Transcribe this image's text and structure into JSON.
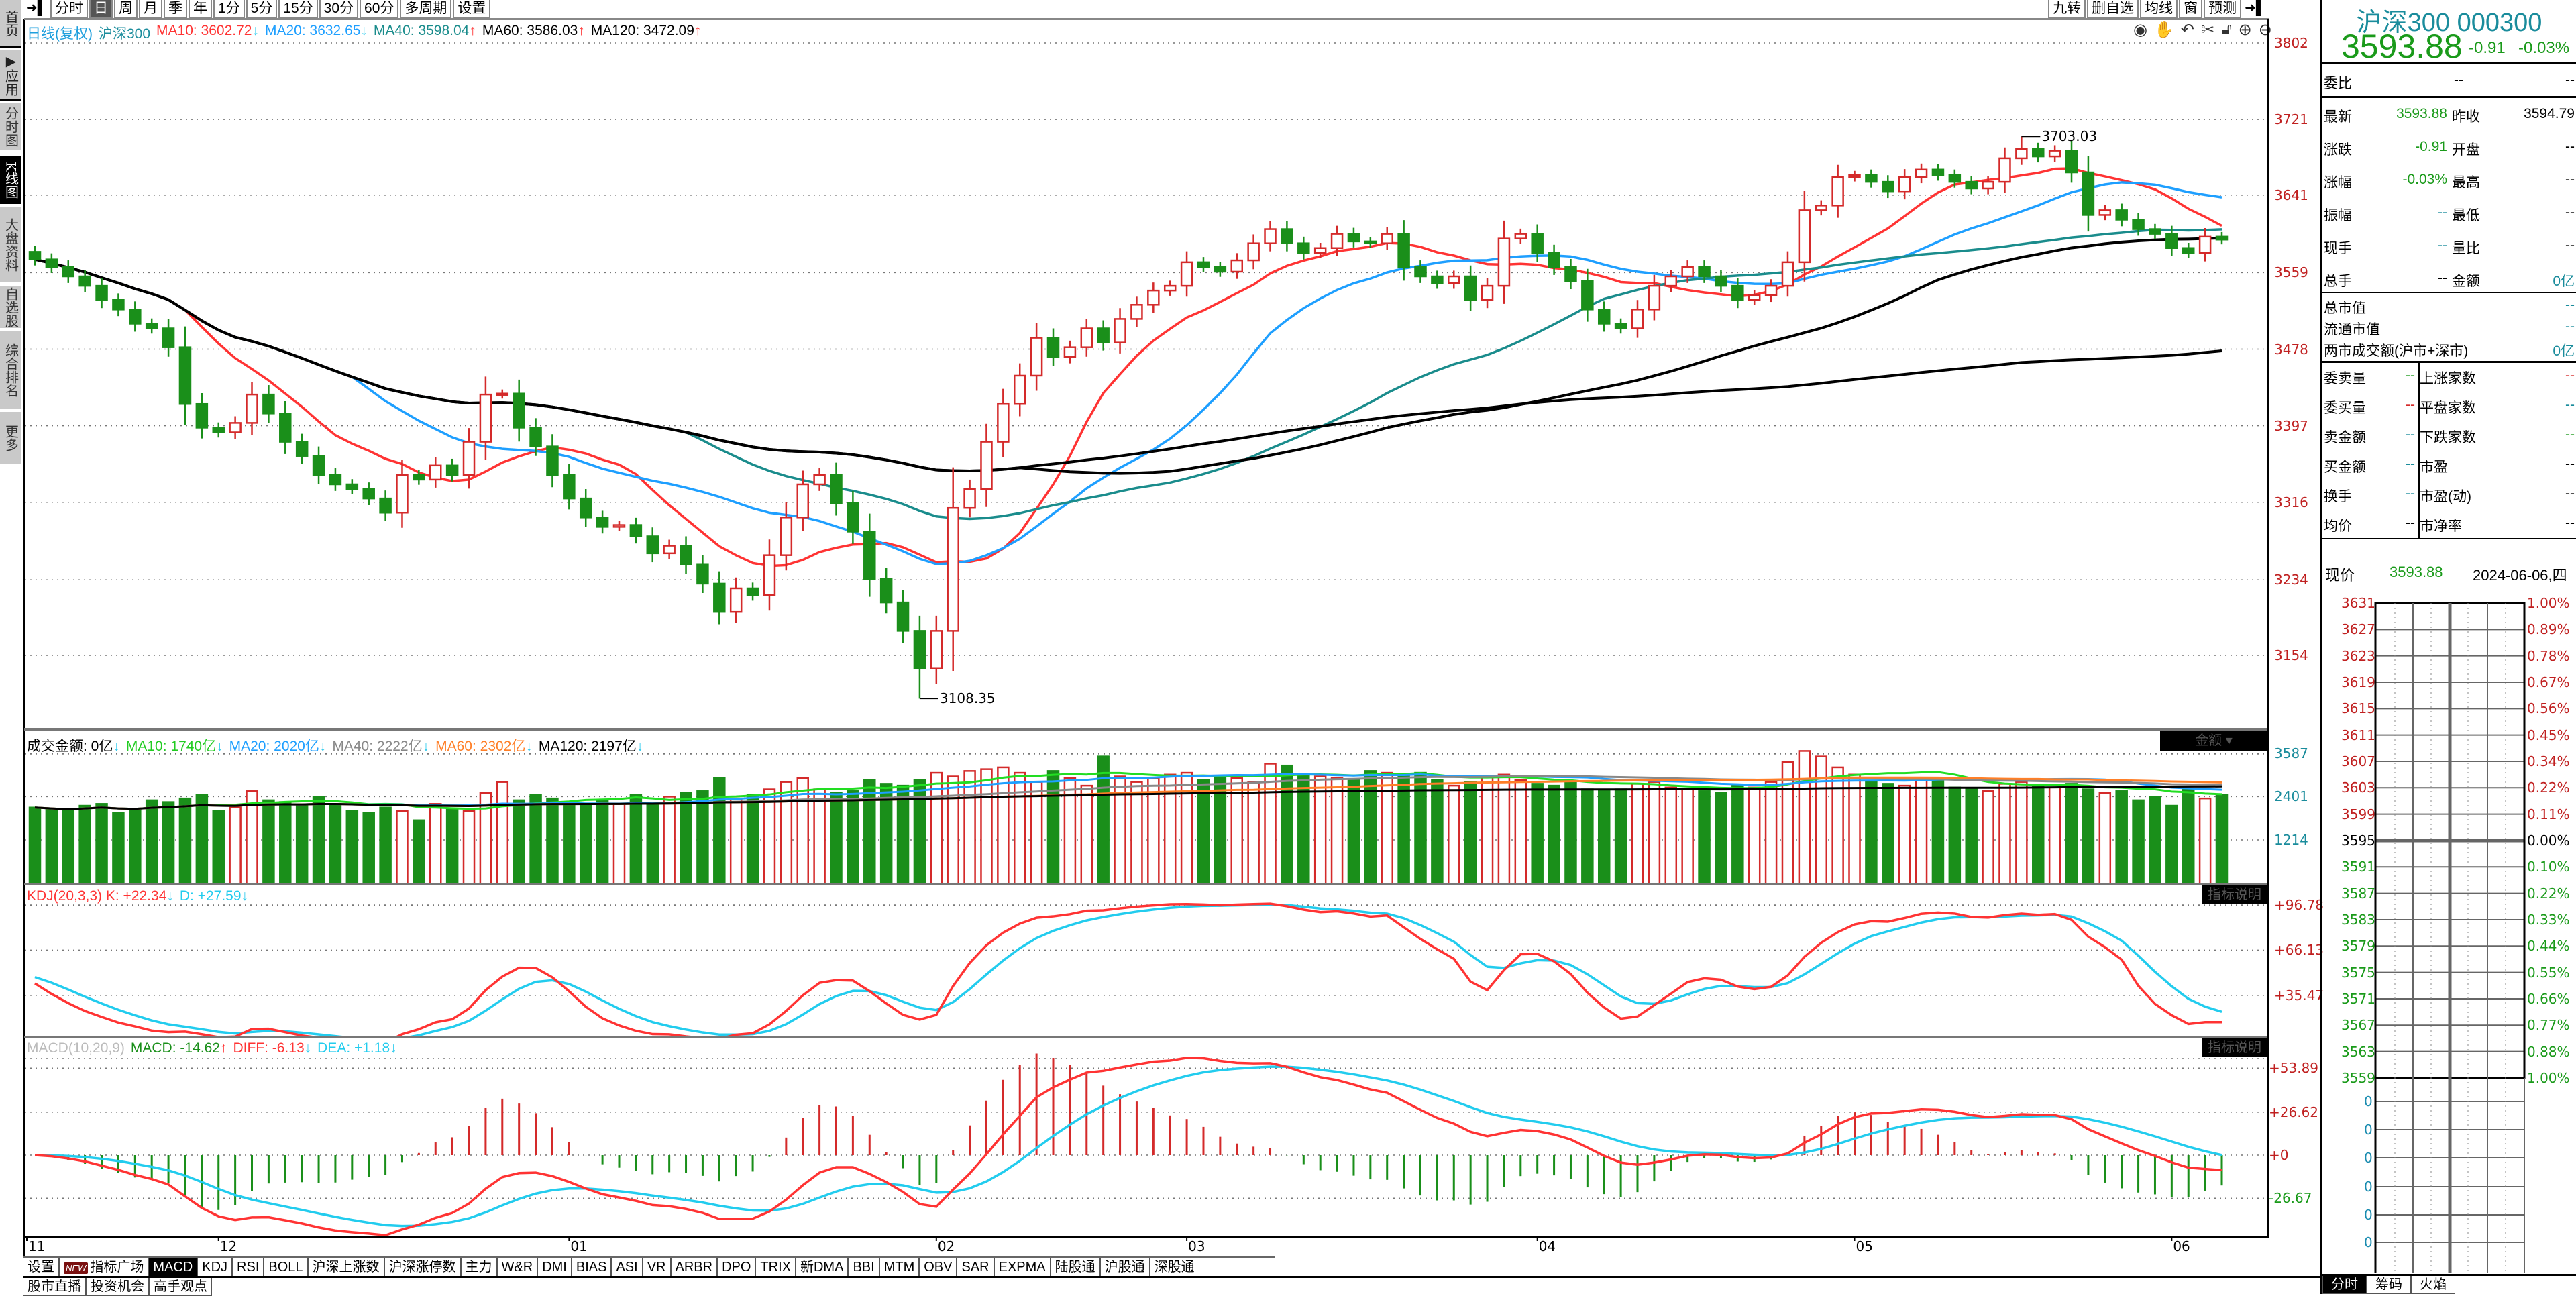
{
  "sidebar": {
    "items": [
      {
        "label": "首页",
        "style": "dark"
      },
      {
        "label": "▶应用",
        "style": "dark"
      },
      {
        "label": "分时图",
        "style": ""
      },
      {
        "label": "K线图",
        "style": "active"
      },
      {
        "label": "大盘资料",
        "style": ""
      },
      {
        "label": "自选股",
        "style": ""
      },
      {
        "label": "综合排名",
        "style": ""
      },
      {
        "label": "更多",
        "style": ""
      }
    ]
  },
  "toolbar": {
    "periods": [
      "分时",
      "日",
      "周",
      "月",
      "季",
      "年",
      "1分",
      "5分",
      "15分",
      "30分",
      "60分",
      "多周期",
      "设置"
    ],
    "active_period": "日",
    "right_buttons": [
      "九转",
      "删自选",
      "均线",
      "窗",
      "预测"
    ]
  },
  "price_legend": {
    "title": "日线(复权)",
    "name": "沪深300",
    "items": [
      {
        "text": "MA10: 3602.72",
        "arrow": "↓",
        "color": "#ff3333",
        "arrow_color": "#33ccee"
      },
      {
        "text": "MA20: 3632.65",
        "arrow": "↓",
        "color": "#1e9fff",
        "arrow_color": "#33ccee"
      },
      {
        "text": "MA40: 3598.04",
        "arrow": "↑",
        "color": "#1a8c8c",
        "arrow_color": "#ff3333"
      },
      {
        "text": "MA60: 3586.03",
        "arrow": "↑",
        "color": "#000000",
        "arrow_color": "#ff3333"
      },
      {
        "text": "MA120: 3472.09",
        "arrow": "↑",
        "color": "#000000",
        "arrow_color": "#ff3333"
      }
    ]
  },
  "chart_icons": [
    "eye-icon",
    "hand-icon",
    "undo-icon",
    "scissors-icon",
    "lock-icon",
    "zoom-in-icon",
    "zoom-out-icon"
  ],
  "volume_legend": {
    "items": [
      {
        "text": "成交金额: 0亿",
        "arrow": "↓",
        "color": "#000000"
      },
      {
        "text": "MA10: 1740亿",
        "arrow": "↓",
        "color": "#22cc22"
      },
      {
        "text": "MA20: 2020亿",
        "arrow": "↓",
        "color": "#1e9fff"
      },
      {
        "text": "MA40: 2222亿",
        "arrow": "↓",
        "color": "#888888"
      },
      {
        "text": "MA60: 2302亿",
        "arrow": "↓",
        "color": "#ff7f27"
      },
      {
        "text": "MA120: 2197亿",
        "arrow": "↓",
        "color": "#000000"
      }
    ],
    "dropdown": "金额 ▾"
  },
  "kdj_legend": {
    "items": [
      {
        "text": "KDJ(20,3,3) K: +22.34",
        "arrow": "↓",
        "color": "#ff3333"
      },
      {
        "text": "D: +27.59",
        "arrow": "↓",
        "color": "#22ccee"
      }
    ],
    "help": "指标说明"
  },
  "macd_legend": {
    "items": [
      {
        "text": "MACD(10,20,9)",
        "arrow": "",
        "color": "#bbbbbb"
      },
      {
        "text": "MACD: -14.62",
        "arrow": "↑",
        "color": "#1a8f1a"
      },
      {
        "text": "DIFF: -6.13",
        "arrow": "↓",
        "color": "#ff3333"
      },
      {
        "text": "DEA: +1.18",
        "arrow": "↓",
        "color": "#22ccee"
      }
    ],
    "help": "指标说明"
  },
  "colors": {
    "up": "#d42a2a",
    "down": "#1a8f1a",
    "ma10": "#ff3333",
    "ma20": "#1e9fff",
    "ma40": "#1a8c8c",
    "ma60": "#000000",
    "ma120": "#000000",
    "vma10": "#22dd22",
    "vma20": "#1e9fff",
    "vma40": "#888888",
    "vma60": "#ff7f27",
    "vma120": "#000000",
    "k": "#ff3333",
    "d": "#22ccee",
    "teal": "#1a8c9c"
  },
  "chart_data": {
    "type": "candlestick",
    "title": "沪深300 日线(复权)",
    "x_ticks": [
      {
        "label": "11",
        "index": 0
      },
      {
        "label": "12",
        "index": 11
      },
      {
        "label": "01",
        "index": 32
      },
      {
        "label": "02",
        "index": 54
      },
      {
        "label": "03",
        "index": 69
      },
      {
        "label": "04",
        "index": 90
      },
      {
        "label": "05",
        "index": 109
      },
      {
        "label": "06",
        "index": 128
      }
    ],
    "price_ticks": [
      3802,
      3721,
      3641,
      3559,
      3478,
      3397,
      3316,
      3234,
      3154
    ],
    "price_ylim": [
      3100,
      3802
    ],
    "close": [
      3573,
      3565,
      3555,
      3545,
      3530,
      3520,
      3505,
      3500,
      3480,
      3420,
      3395,
      3390,
      3400,
      3430,
      3410,
      3380,
      3365,
      3345,
      3335,
      3330,
      3320,
      3305,
      3345,
      3340,
      3355,
      3345,
      3380,
      3430,
      3431,
      3395,
      3375,
      3345,
      3320,
      3300,
      3290,
      3292,
      3280,
      3262,
      3270,
      3250,
      3230,
      3200,
      3225,
      3218,
      3260,
      3300,
      3335,
      3345,
      3315,
      3285,
      3235,
      3210,
      3180,
      3140,
      3180,
      3310,
      3330,
      3380,
      3420,
      3450,
      3490,
      3470,
      3480,
      3500,
      3485,
      3510,
      3525,
      3540,
      3545,
      3570,
      3565,
      3560,
      3572,
      3590,
      3605,
      3590,
      3580,
      3585,
      3600,
      3592,
      3590,
      3600,
      3565,
      3555,
      3548,
      3555,
      3530,
      3545,
      3595,
      3600,
      3580,
      3565,
      3550,
      3520,
      3505,
      3500,
      3520,
      3545,
      3555,
      3565,
      3555,
      3545,
      3530,
      3535,
      3545,
      3570,
      3625,
      3630,
      3660,
      3662,
      3655,
      3645,
      3660,
      3668,
      3662,
      3655,
      3648,
      3655,
      3680,
      3690,
      3682,
      3688,
      3665,
      3620,
      3625,
      3615,
      3605,
      3600,
      3585,
      3580,
      3597,
      3593.88
    ],
    "annotations": [
      {
        "label": "3703.03",
        "index": 119,
        "value": 3703.03,
        "type": "high"
      },
      {
        "label": "3108.35",
        "index": 53,
        "value": 3108.35,
        "type": "low"
      }
    ],
    "ma_periods": [
      10,
      20,
      40,
      60,
      120
    ],
    "volume": [
      2100,
      2050,
      2000,
      2150,
      2200,
      1950,
      2000,
      2300,
      2250,
      2350,
      2450,
      2000,
      2100,
      2550,
      2300,
      2250,
      2150,
      2400,
      2200,
      2000,
      1950,
      2100,
      2000,
      1750,
      2200,
      2050,
      2000,
      2500,
      2800,
      2300,
      2450,
      2350,
      2250,
      2200,
      2300,
      2200,
      2450,
      2200,
      2400,
      2500,
      2550,
      2900,
      2350,
      2450,
      2600,
      2800,
      2900,
      2600,
      2500,
      2550,
      2850,
      2750,
      2700,
      2850,
      3050,
      2950,
      3100,
      3150,
      3200,
      3050,
      2800,
      3100,
      2900,
      2700,
      3500,
      2950,
      2800,
      2900,
      3000,
      3050,
      2850,
      2950,
      2900,
      2800,
      3300,
      3250,
      3000,
      2950,
      2900,
      2850,
      3100,
      3050,
      2950,
      3050,
      2850,
      2700,
      2800,
      2950,
      3000,
      2850,
      2750,
      2700,
      2800,
      2600,
      2550,
      2600,
      2750,
      2800,
      2650,
      2600,
      2550,
      2500,
      2700,
      2650,
      2800,
      3350,
      3650,
      3500,
      3200,
      3000,
      2800,
      2750,
      2700,
      2850,
      2900,
      2650,
      2600,
      2550,
      2750,
      2800,
      2700,
      2650,
      2750,
      2600,
      2500,
      2550,
      2300,
      2400,
      2150,
      2600,
      2350,
      2450
    ],
    "volume_unit": "亿",
    "volume_ticks": [
      3587,
      2401,
      1214
    ],
    "kdj_ticks": [
      {
        "label": "+96.78",
        "value": 96.78
      },
      {
        "label": "+66.13",
        "value": 66.13
      },
      {
        "label": "+35.47",
        "value": 35.47
      }
    ],
    "macd_ticks": [
      {
        "label": "+53.89",
        "value": 53.89,
        "sign": "up"
      },
      {
        "label": "+26.62",
        "value": 26.62,
        "sign": "up"
      },
      {
        "label": "+0",
        "value": 0,
        "sign": "up"
      },
      {
        "label": "-26.67",
        "value": -26.67,
        "sign": "down"
      }
    ]
  },
  "quote": {
    "title": "沪深300 000300",
    "price": "3593.88",
    "change": "-0.91",
    "change_pct": "-0.03%",
    "weibi": {
      "label": "委比",
      "v1": "--",
      "v2": "--"
    },
    "rows": [
      {
        "l1": "最新",
        "v1": "3593.88",
        "c1": "green",
        "l2": "昨收",
        "v2": "3594.79",
        "c2": "black"
      },
      {
        "l1": "涨跌",
        "v1": "-0.91",
        "c1": "green",
        "l2": "开盘",
        "v2": "--",
        "c2": "black"
      },
      {
        "l1": "涨幅",
        "v1": "-0.03%",
        "c1": "green",
        "l2": "最高",
        "v2": "--",
        "c2": "black"
      },
      {
        "l1": "振幅",
        "v1": "--",
        "c1": "teal",
        "l2": "最低",
        "v2": "--",
        "c2": "black"
      },
      {
        "l1": "现手",
        "v1": "--",
        "c1": "teal",
        "l2": "量比",
        "v2": "--",
        "c2": "black"
      },
      {
        "l1": "总手",
        "v1": "--",
        "c1": "black",
        "l2": "金额",
        "v2": "0亿",
        "c2": "teal"
      }
    ],
    "market": [
      {
        "label": "总市值",
        "value": "--",
        "color": "teal"
      },
      {
        "label": "流通市值",
        "value": "--",
        "color": "teal"
      },
      {
        "label": "两市成交额(沪市+深市)",
        "value": "0亿",
        "color": "teal"
      }
    ],
    "breadth": [
      {
        "l1": "委卖量",
        "v1": "--",
        "c1": "green",
        "l2": "上涨家数",
        "v2": "--",
        "c2": "red"
      },
      {
        "l1": "委买量",
        "v1": "--",
        "c1": "red",
        "l2": "平盘家数",
        "v2": "--",
        "c2": "teal"
      },
      {
        "l1": "卖金额",
        "v1": "--",
        "c1": "teal",
        "l2": "下跌家数",
        "v2": "--",
        "c2": "green"
      },
      {
        "l1": "买金额",
        "v1": "--",
        "c1": "teal",
        "l2": "市盈",
        "v2": "--",
        "c2": "black"
      },
      {
        "l1": "换手",
        "v1": "--",
        "c1": "teal",
        "l2": "市盈(动)",
        "v2": "--",
        "c2": "black"
      },
      {
        "l1": "均价",
        "v1": "--",
        "c1": "black",
        "l2": "市净率",
        "v2": "--",
        "c2": "black"
      }
    ],
    "intraday": {
      "label": "现价",
      "price": "3593.88",
      "date": "2024-06-06,四",
      "price_labels": [
        "3631",
        "3627",
        "3623",
        "3619",
        "3615",
        "3611",
        "3607",
        "3603",
        "3599",
        "3595",
        "3591",
        "3587",
        "3583",
        "3579",
        "3575",
        "3571",
        "3567",
        "3563",
        "3559"
      ],
      "pct_labels": [
        "1.00%",
        "0.89%",
        "0.78%",
        "0.67%",
        "0.56%",
        "0.45%",
        "0.34%",
        "0.22%",
        "0.11%",
        "0.00%",
        "0.10%",
        "0.22%",
        "0.33%",
        "0.44%",
        "0.55%",
        "0.66%",
        "0.77%",
        "0.88%",
        "1.00%"
      ],
      "volume_labels": [
        "0",
        "0",
        "0",
        "0",
        "0",
        "0"
      ],
      "tabs": [
        "分时",
        "筹码",
        "火焰"
      ],
      "active_tab": "分时"
    }
  },
  "bottom_tabs": {
    "indicators": [
      "设置",
      "指标广场",
      "MACD",
      "KDJ",
      "RSI",
      "BOLL",
      "沪深上涨数",
      "沪深涨停数",
      "主力",
      "W&R",
      "DMI",
      "BIAS",
      "ASI",
      "VR",
      "ARBR",
      "DPO",
      "TRIX",
      "新DMA",
      "BBI",
      "MTM",
      "OBV",
      "SAR",
      "EXPMA",
      "陆股通",
      "沪股通",
      "深股通"
    ],
    "new_badge": "NEW",
    "active": "MACD",
    "news": [
      "股市直播",
      "投资机会",
      "高手观点"
    ]
  }
}
